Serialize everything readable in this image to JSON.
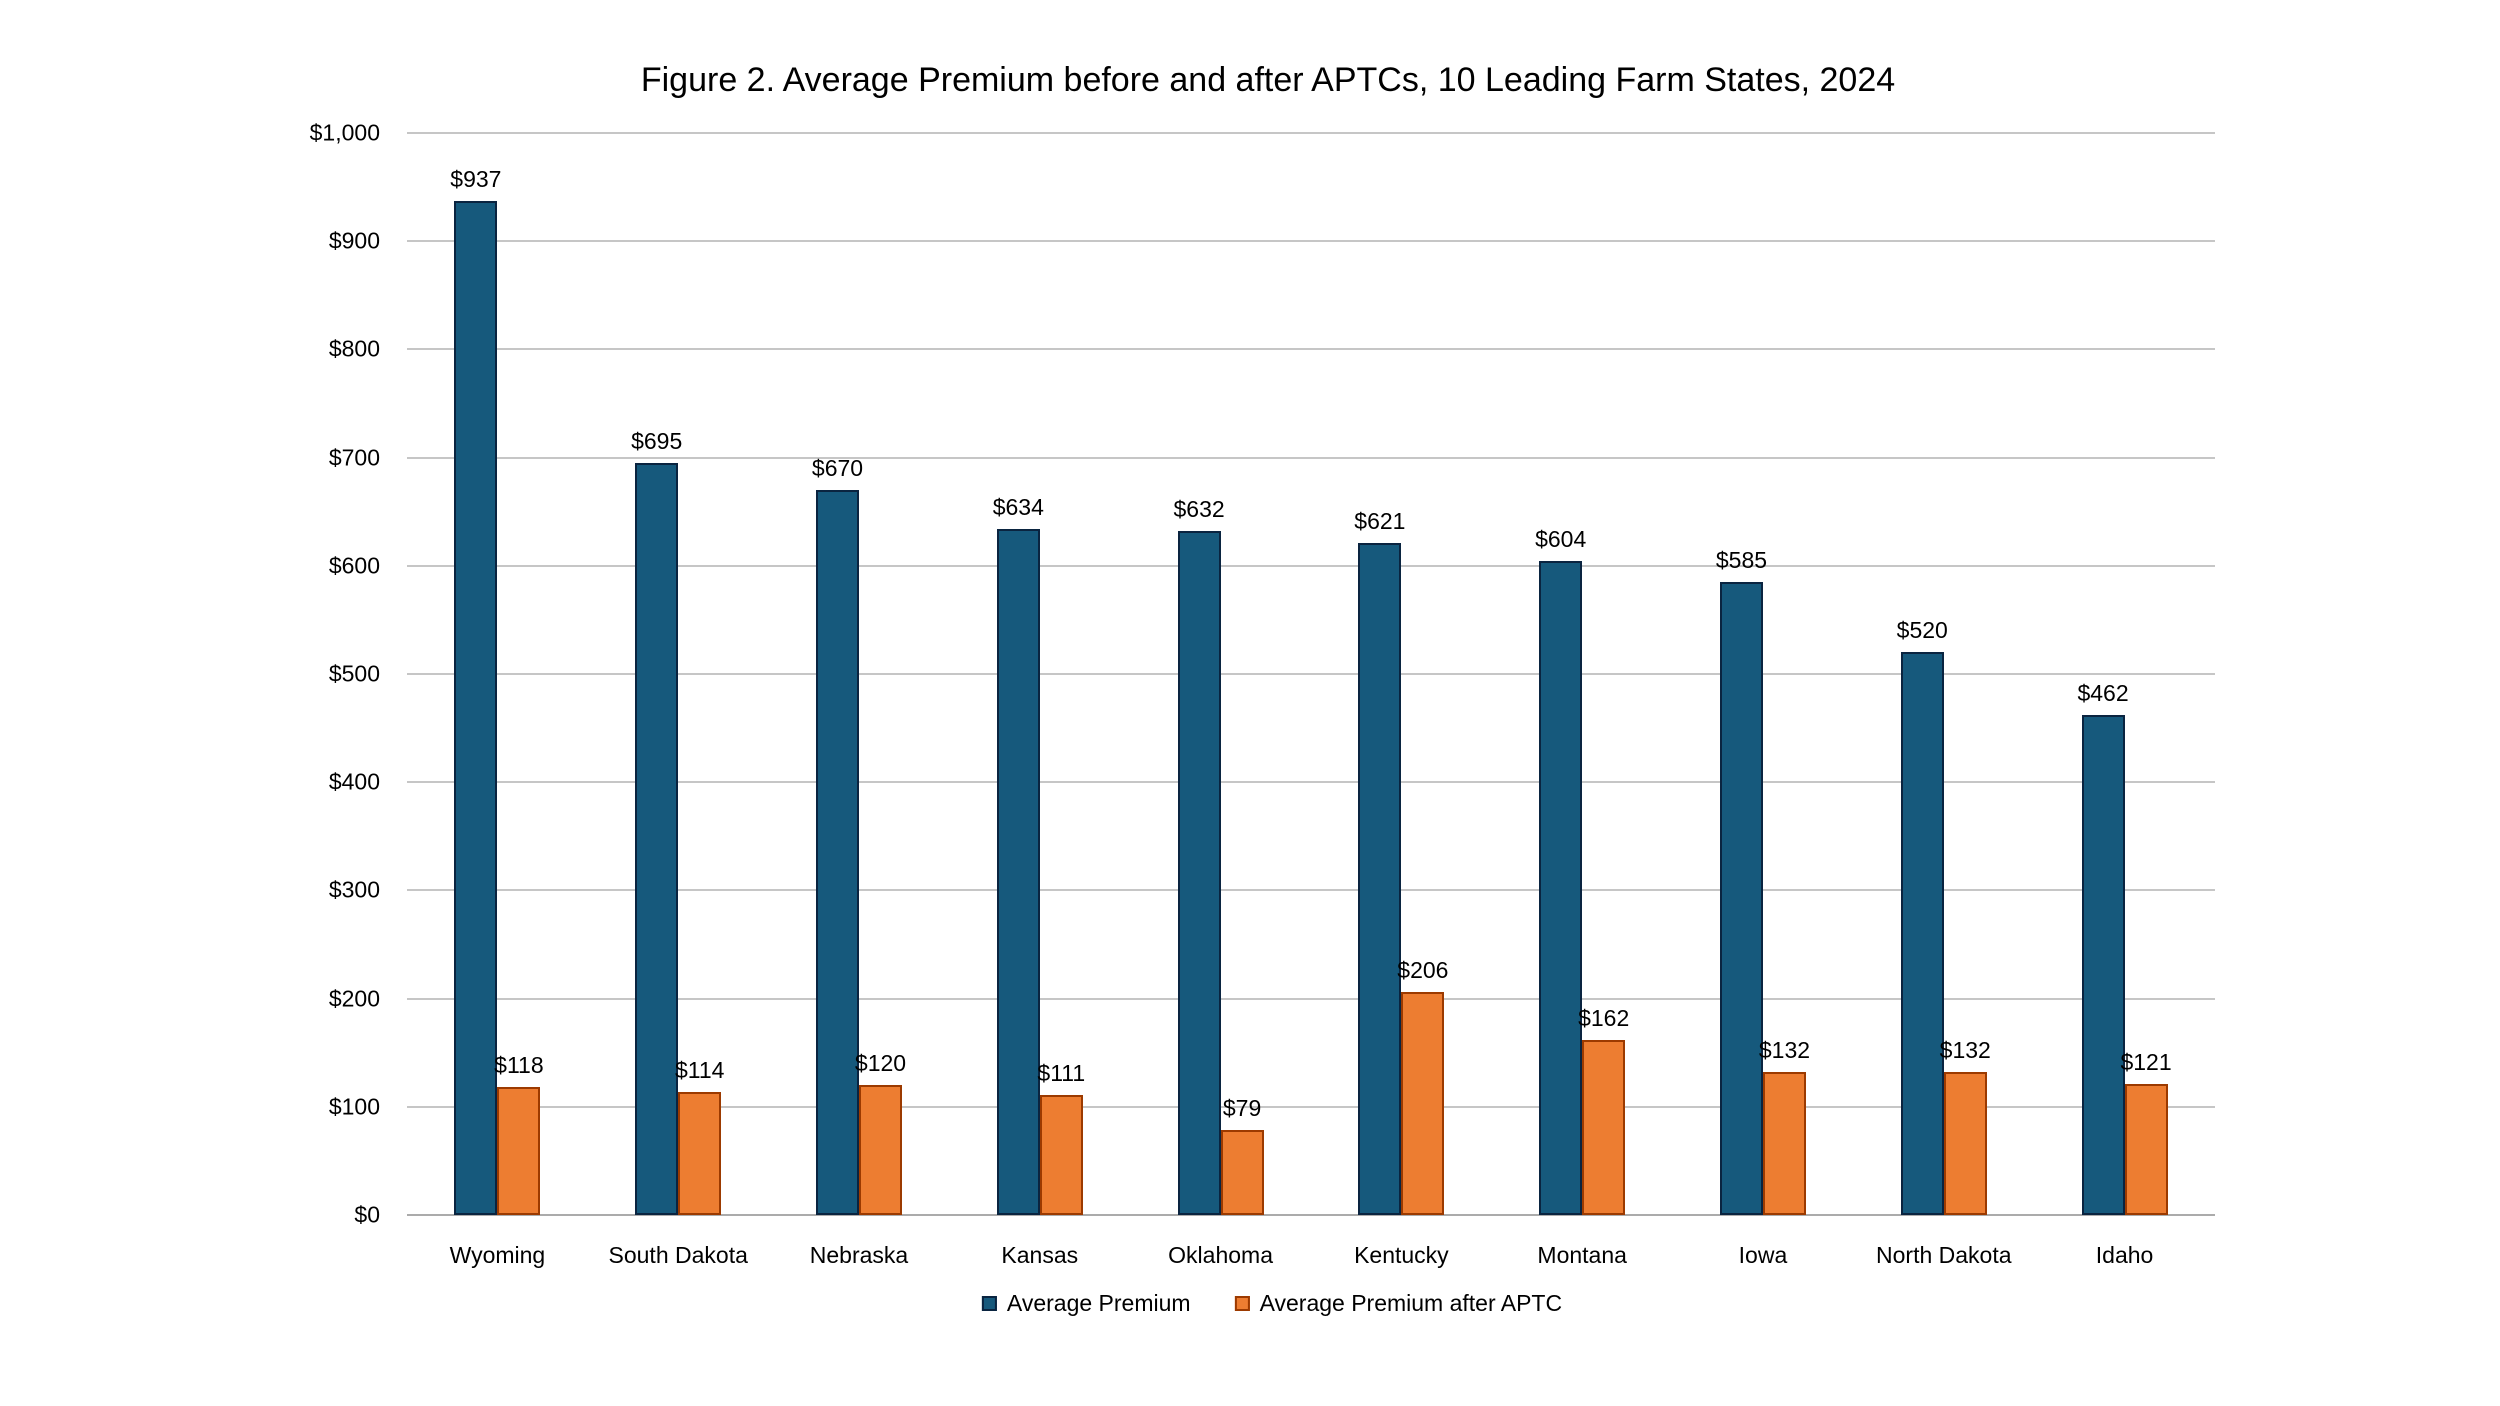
{
  "title": "Figure 2. Average Premium before and after APTCs, 10 Leading Farm States, 2024",
  "chart_data": {
    "type": "bar",
    "categories": [
      "Wyoming",
      "South Dakota",
      "Nebraska",
      "Kansas",
      "Oklahoma",
      "Kentucky",
      "Montana",
      "Iowa",
      "North Dakota",
      "Idaho"
    ],
    "series": [
      {
        "name": "Average Premium",
        "color": "#16597c",
        "border_color": "#0a2440",
        "values": [
          937,
          695,
          670,
          634,
          632,
          621,
          604,
          585,
          520,
          462
        ]
      },
      {
        "name": "Average Premium after APTC",
        "color": "#ed7d31",
        "border_color": "#9c3a00",
        "values": [
          118,
          114,
          120,
          111,
          79,
          206,
          162,
          132,
          132,
          121
        ]
      }
    ],
    "title": "Figure 2. Average Premium before and after APTCs, 10 Leading Farm States, 2024",
    "xlabel": "",
    "ylabel": "",
    "ylim": [
      0,
      1000
    ],
    "ytick_step": 100,
    "ytick_labels": [
      "$0",
      "$100",
      "$200",
      "$300",
      "$400",
      "$500",
      "$600",
      "$700",
      "$800",
      "$900",
      "$1,000"
    ],
    "value_label_prefix": "$",
    "grid": true,
    "gridline_color": "#c6c6c6",
    "legend_position": "bottom"
  }
}
